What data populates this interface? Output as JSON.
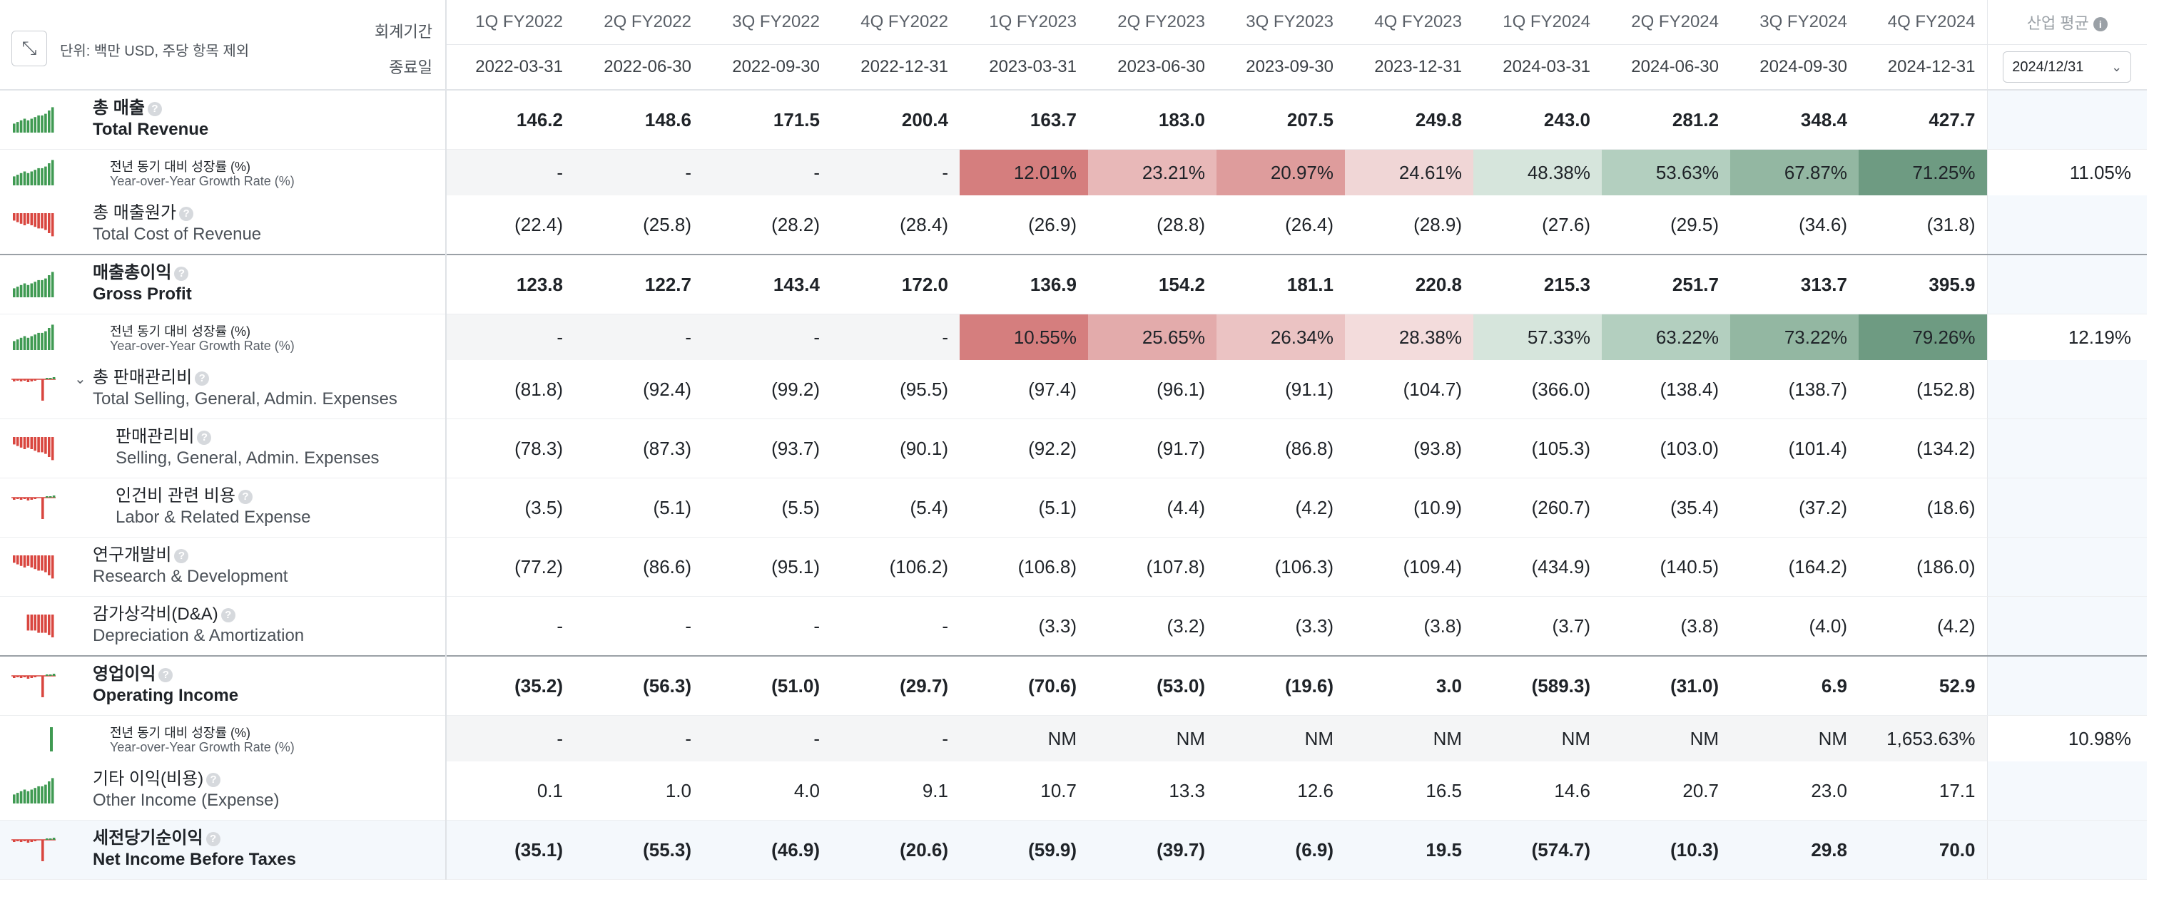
{
  "header": {
    "unit_label": "단위: 백만 USD, 주당 항목 제외",
    "fiscal_period_label": "회계기간",
    "end_date_label": "종료일",
    "industry_avg_label": "산업 평균",
    "date_select_value": "2024/12/31",
    "periods": [
      {
        "q": "1Q FY2022",
        "d": "2022-03-31"
      },
      {
        "q": "2Q FY2022",
        "d": "2022-06-30"
      },
      {
        "q": "3Q FY2022",
        "d": "2022-09-30"
      },
      {
        "q": "4Q FY2022",
        "d": "2022-12-31"
      },
      {
        "q": "1Q FY2023",
        "d": "2023-03-31"
      },
      {
        "q": "2Q FY2023",
        "d": "2023-06-30"
      },
      {
        "q": "3Q FY2023",
        "d": "2023-09-30"
      },
      {
        "q": "4Q FY2023",
        "d": "2023-12-31"
      },
      {
        "q": "1Q FY2024",
        "d": "2024-03-31"
      },
      {
        "q": "2Q FY2024",
        "d": "2024-06-30"
      },
      {
        "q": "3Q FY2024",
        "d": "2024-09-30"
      },
      {
        "q": "4Q FY2024",
        "d": "2024-12-31"
      }
    ]
  },
  "rows": [
    {
      "id": "total-revenue",
      "ko": "총 매출",
      "en": "Total Revenue",
      "bold": true,
      "type": "main",
      "spark": "green",
      "values": [
        "146.2",
        "148.6",
        "171.5",
        "200.4",
        "163.7",
        "183.0",
        "207.5",
        "249.8",
        "243.0",
        "281.2",
        "348.4",
        "427.7"
      ],
      "avg": ""
    },
    {
      "id": "total-revenue-yoy",
      "ko": "전년 동기 대비 성장률 (%)",
      "en": "Year-over-Year Growth Rate (%)",
      "type": "sub",
      "spark": "green",
      "values": [
        "-",
        "-",
        "-",
        "-",
        "12.01%",
        "23.21%",
        "20.97%",
        "24.61%",
        "48.38%",
        "53.63%",
        "67.87%",
        "71.25%"
      ],
      "colors": [
        "",
        "",
        "",
        "",
        "#d57e7e",
        "#e8b8b8",
        "#de9c9c",
        "#f0d6d6",
        "#d6e5dc",
        "#b3cfbf",
        "#93b7a2",
        "#6e9b82"
      ],
      "avg": "11.05%"
    },
    {
      "id": "total-cost-of-revenue",
      "ko": "총 매출원가",
      "en": "Total Cost of Revenue",
      "type": "main",
      "spark": "red",
      "values": [
        "(22.4)",
        "(25.8)",
        "(28.2)",
        "(28.4)",
        "(26.9)",
        "(28.8)",
        "(26.4)",
        "(28.9)",
        "(27.6)",
        "(29.5)",
        "(34.6)",
        "(31.8)"
      ],
      "avg": ""
    },
    {
      "id": "gross-profit",
      "ko": "매출총이익",
      "en": "Gross Profit",
      "bold": true,
      "type": "main",
      "spark": "green",
      "thick": true,
      "values": [
        "123.8",
        "122.7",
        "143.4",
        "172.0",
        "136.9",
        "154.2",
        "181.1",
        "220.8",
        "215.3",
        "251.7",
        "313.7",
        "395.9"
      ],
      "avg": ""
    },
    {
      "id": "gross-profit-yoy",
      "ko": "전년 동기 대비 성장률 (%)",
      "en": "Year-over-Year Growth Rate (%)",
      "type": "sub",
      "spark": "green",
      "values": [
        "-",
        "-",
        "-",
        "-",
        "10.55%",
        "25.65%",
        "26.34%",
        "28.38%",
        "57.33%",
        "63.22%",
        "73.22%",
        "79.26%"
      ],
      "colors": [
        "",
        "",
        "",
        "",
        "#d57e7e",
        "#e3abab",
        "#ebc3c3",
        "#f3dcdc",
        "#d6e5dc",
        "#b3cfbf",
        "#93b7a2",
        "#6e9b82"
      ],
      "avg": "12.19%"
    },
    {
      "id": "total-sga",
      "ko": "총 판매관리비",
      "en": "Total Selling, General, Admin. Expenses",
      "type": "main",
      "spark": "red-mix",
      "chevron": true,
      "values": [
        "(81.8)",
        "(92.4)",
        "(99.2)",
        "(95.5)",
        "(97.4)",
        "(96.1)",
        "(91.1)",
        "(104.7)",
        "(366.0)",
        "(138.4)",
        "(138.7)",
        "(152.8)"
      ],
      "avg": ""
    },
    {
      "id": "sga",
      "ko": "판매관리비",
      "en": "Selling, General, Admin. Expenses",
      "type": "main",
      "indent": true,
      "spark": "red",
      "values": [
        "(78.3)",
        "(87.3)",
        "(93.7)",
        "(90.1)",
        "(92.2)",
        "(91.7)",
        "(86.8)",
        "(93.8)",
        "(105.3)",
        "(103.0)",
        "(101.4)",
        "(134.2)"
      ],
      "avg": ""
    },
    {
      "id": "labor",
      "ko": "인건비 관련 비용",
      "en": "Labor & Related Expense",
      "type": "main",
      "indent": true,
      "spark": "red-mix",
      "values": [
        "(3.5)",
        "(5.1)",
        "(5.5)",
        "(5.4)",
        "(5.1)",
        "(4.4)",
        "(4.2)",
        "(10.9)",
        "(260.7)",
        "(35.4)",
        "(37.2)",
        "(18.6)"
      ],
      "avg": ""
    },
    {
      "id": "rnd",
      "ko": "연구개발비",
      "en": "Research & Development",
      "type": "main",
      "spark": "red",
      "values": [
        "(77.2)",
        "(86.6)",
        "(95.1)",
        "(106.2)",
        "(106.8)",
        "(107.8)",
        "(106.3)",
        "(109.4)",
        "(434.9)",
        "(140.5)",
        "(164.2)",
        "(186.0)"
      ],
      "avg": ""
    },
    {
      "id": "dna",
      "ko": "감가상각비(D&A)",
      "en": "Depreciation & Amortization",
      "type": "main",
      "spark": "red-short",
      "values": [
        "-",
        "-",
        "-",
        "-",
        "(3.3)",
        "(3.2)",
        "(3.3)",
        "(3.8)",
        "(3.7)",
        "(3.8)",
        "(4.0)",
        "(4.2)"
      ],
      "avg": ""
    },
    {
      "id": "operating-income",
      "ko": "영업이익",
      "en": "Operating Income",
      "bold": true,
      "type": "main",
      "spark": "red-mix",
      "thick": true,
      "values": [
        "(35.2)",
        "(56.3)",
        "(51.0)",
        "(29.7)",
        "(70.6)",
        "(53.0)",
        "(19.6)",
        "3.0",
        "(589.3)",
        "(31.0)",
        "6.9",
        "52.9"
      ],
      "avg": ""
    },
    {
      "id": "operating-income-yoy",
      "ko": "전년 동기 대비 성장률 (%)",
      "en": "Year-over-Year Growth Rate (%)",
      "type": "sub",
      "spark": "green-single",
      "values": [
        "-",
        "-",
        "-",
        "-",
        "NM",
        "NM",
        "NM",
        "NM",
        "NM",
        "NM",
        "NM",
        "1,653.63%"
      ],
      "colors": [
        "",
        "",
        "",
        "",
        "",
        "",
        "",
        "",
        "",
        "",
        "",
        ""
      ],
      "avg": "10.98%"
    },
    {
      "id": "other-income",
      "ko": "기타 이익(비용)",
      "en": "Other Income (Expense)",
      "type": "main",
      "spark": "green",
      "values": [
        "0.1",
        "1.0",
        "4.0",
        "9.1",
        "10.7",
        "13.3",
        "12.6",
        "16.5",
        "14.6",
        "20.7",
        "23.0",
        "17.1"
      ],
      "avg": ""
    },
    {
      "id": "ebt",
      "ko": "세전당기순이익",
      "en": "Net Income Before Taxes",
      "bold": true,
      "type": "main",
      "spark": "red-mix",
      "values": [
        "(35.1)",
        "(55.3)",
        "(46.9)",
        "(20.6)",
        "(59.9)",
        "(39.7)",
        "(6.9)",
        "19.5",
        "(574.7)",
        "(10.3)",
        "29.8",
        "70.0"
      ],
      "avg": ""
    }
  ]
}
